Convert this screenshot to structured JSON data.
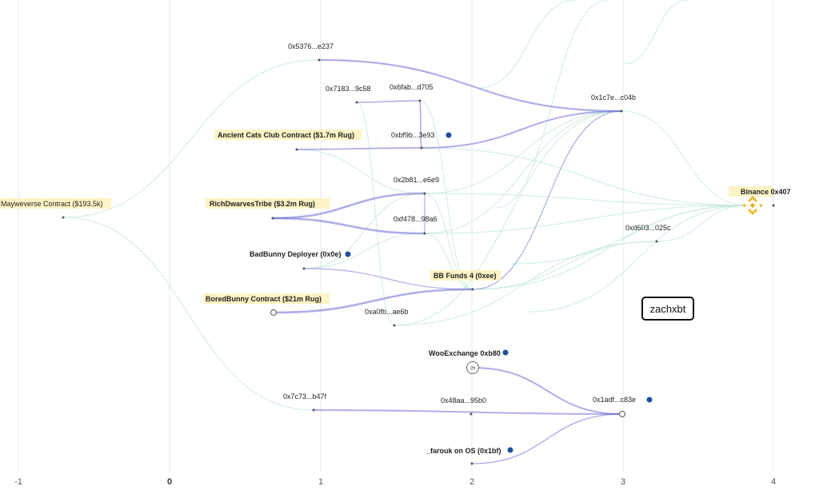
{
  "axis": {
    "ticks": [
      "-1",
      "0",
      "1",
      "2",
      "3",
      "4"
    ]
  },
  "colors": {
    "flow_main": "#6b6bd6",
    "flow_light": "#bfe6da",
    "highlight": "#fdf3c4",
    "marker": "#1f4e9c",
    "binance": "#e8b830"
  },
  "nodes": {
    "mayweverse": "Mayweverse Contract ($193.5k)",
    "n5376": "0x5376...e237",
    "n7183": "0x7183...9c58",
    "n6fab": "0x6fab...d705",
    "ancient": "Ancient Cats Club Contract ($1.7m Rug)",
    "nbf9b": "0xbf9b...3e93",
    "n2b81": "0x2b81...e6e9",
    "rich": "RichDwarvesTribe ($3.2m Rug)",
    "nf478": "0xf478...98a6",
    "badbunny": "BadBunny Deployer (0x0e)",
    "bbfunds": "BB Funds 4 (0xee)",
    "bored": "BoredBunny Contract ($21m Rug)",
    "na0fb": "0xa0fb...ae6b",
    "n1c7e": "0x1c7e...c04b",
    "binance": "Binance 0x407",
    "nd603": "0xd603...025c",
    "woo": "WooExchange 0xb80",
    "n7c73": "0x7c73...b47f",
    "n48aa": "0x48aa...95b0",
    "n1adf": "0x1adf...c83e",
    "farouk": "_farouk on OS (0x1bf)"
  },
  "watermark": "zachxbt"
}
